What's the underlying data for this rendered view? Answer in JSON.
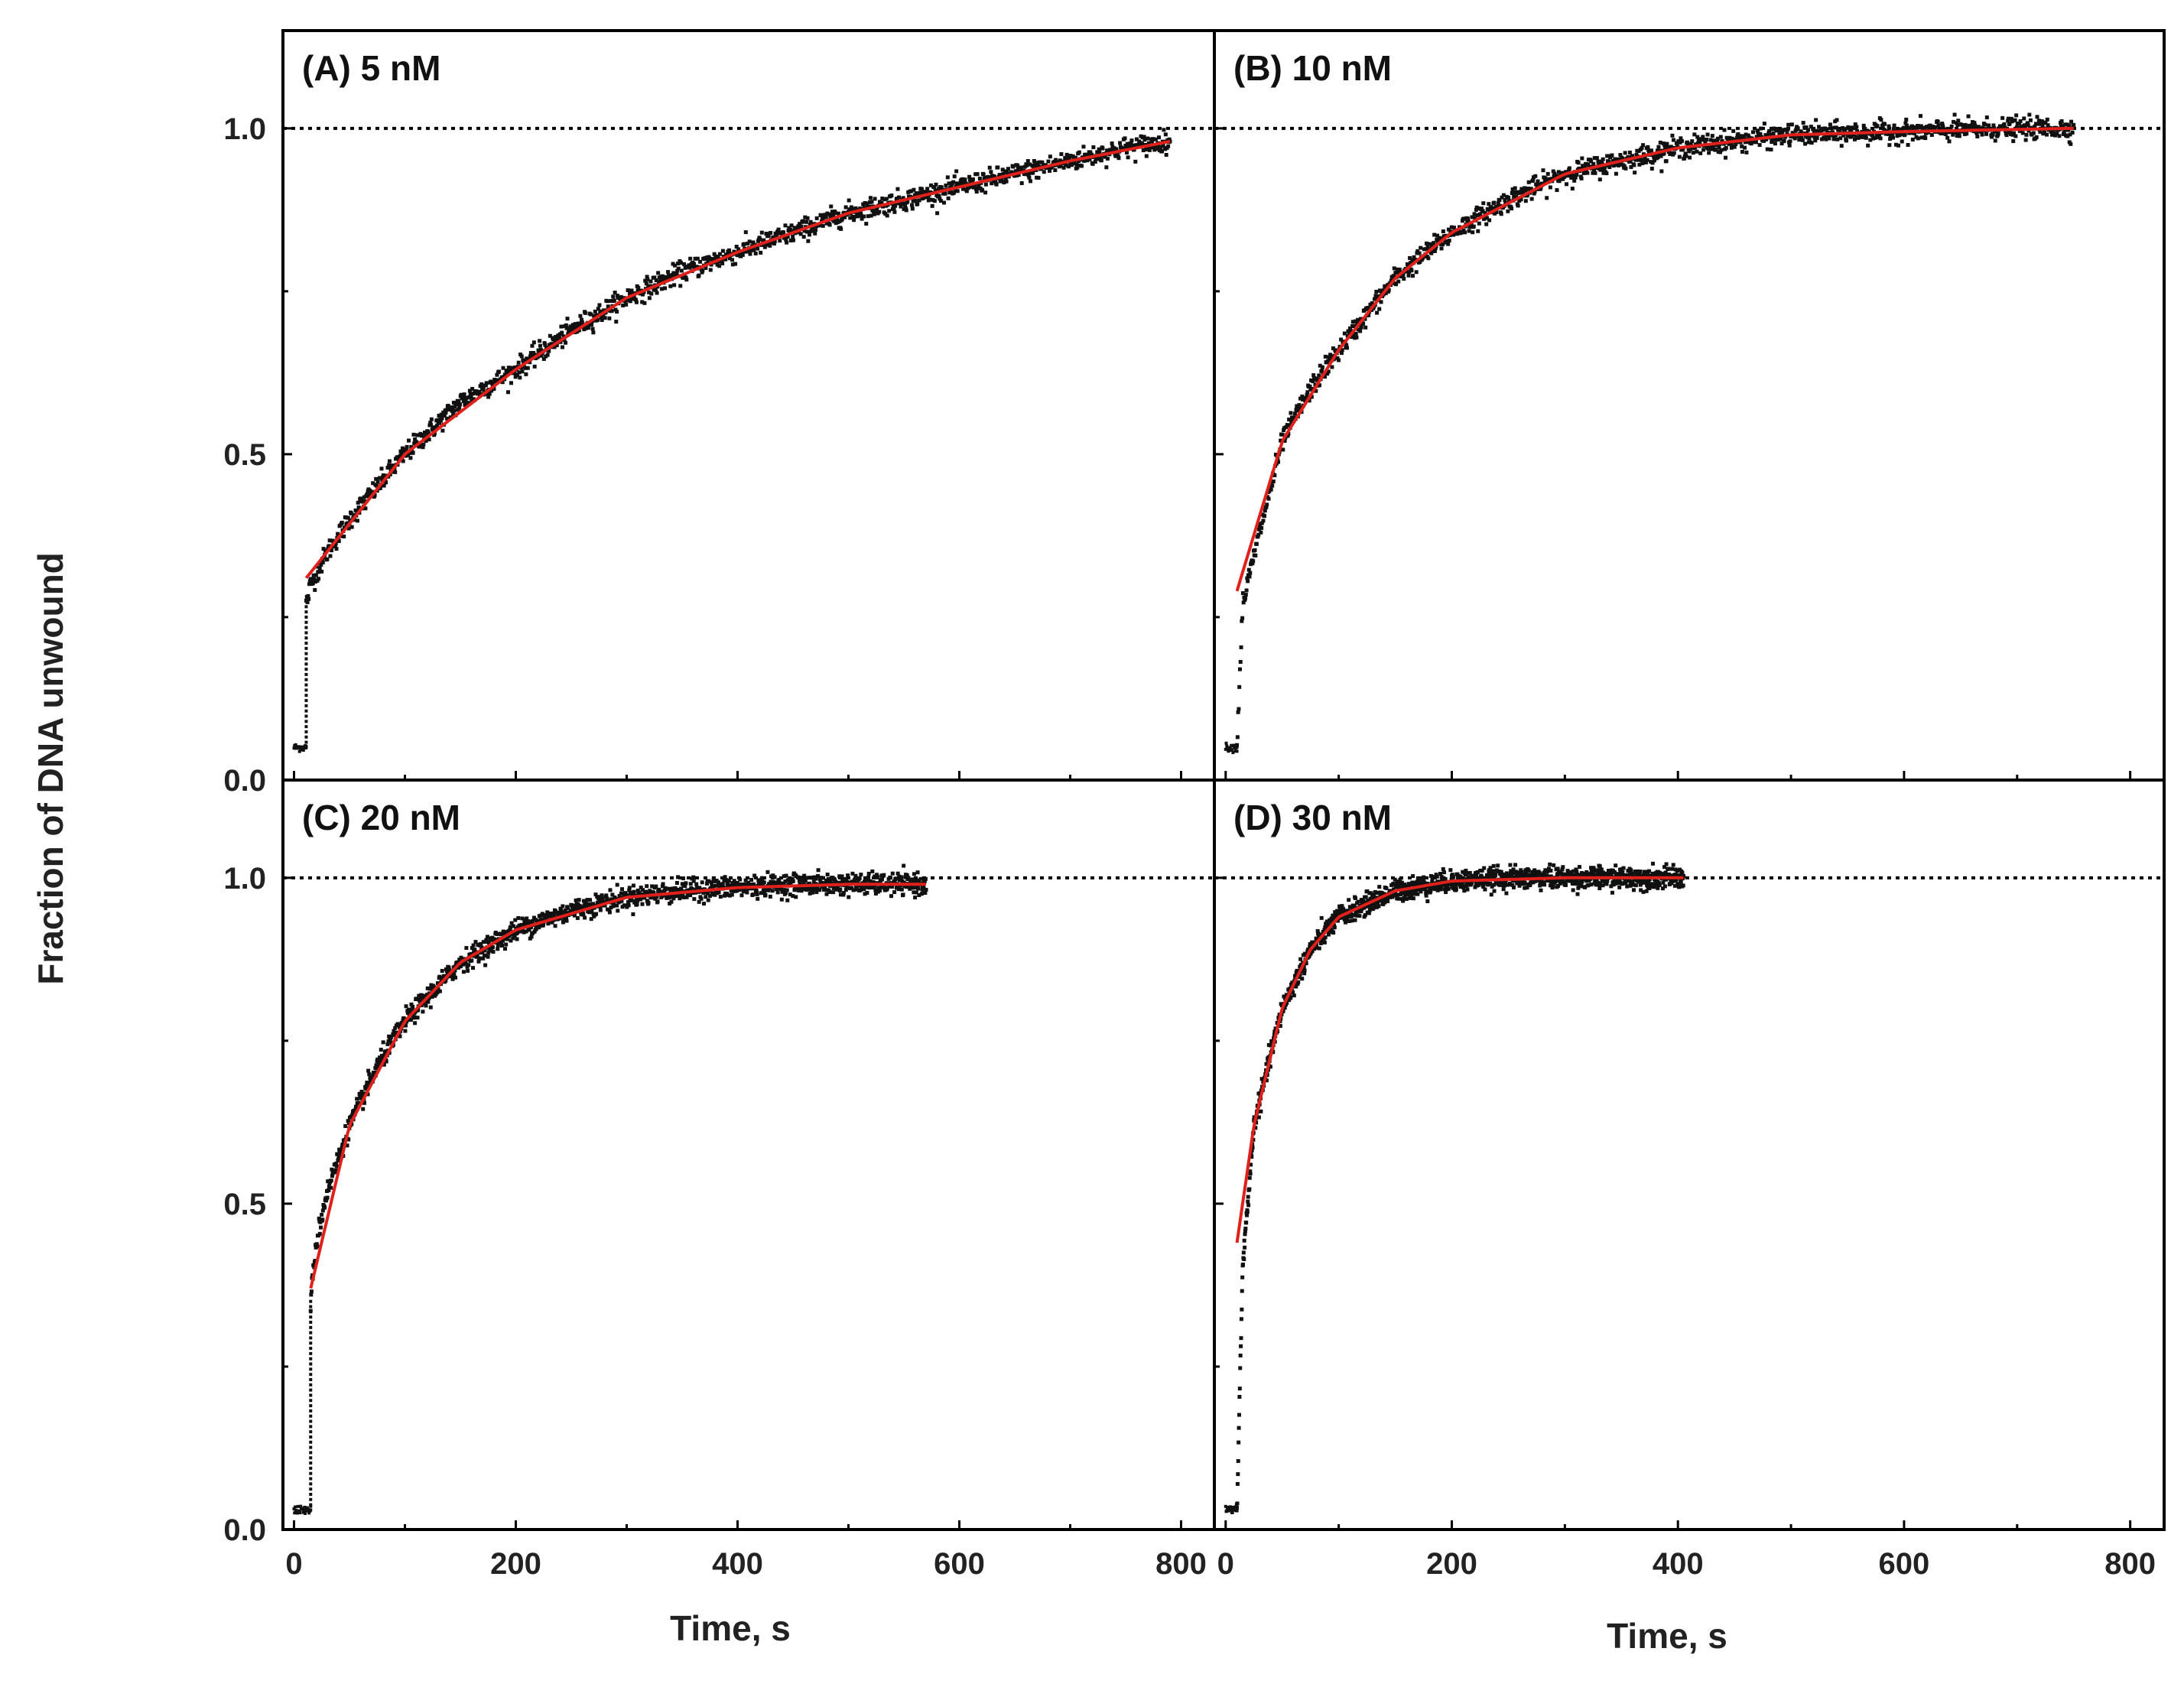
{
  "figure": {
    "ylabel": "Fraction of DNA unwound",
    "xlabel": "Time, s",
    "x_ticks": [
      "0",
      "200",
      "400",
      "600",
      "800"
    ],
    "y_ticks": [
      "0.0",
      "0.5",
      "1.0"
    ],
    "colors": {
      "data": "#111111",
      "fit": "#e0201b",
      "frame": "#000000",
      "reference": "#000000"
    }
  },
  "chart_data": [
    {
      "type": "scatter",
      "panel_label": "(A) 5 nM",
      "xlim": [
        -10,
        830
      ],
      "ylim": [
        0,
        1.15
      ],
      "reference_line_y": 1.0,
      "lag_s": 11,
      "baseline": 0.05,
      "fit": {
        "y0": 0.31,
        "amplitude": 0.69,
        "t_end": 790,
        "points": [
          [
            11,
            0.31
          ],
          [
            100,
            0.5
          ],
          [
            200,
            0.63
          ],
          [
            300,
            0.74
          ],
          [
            400,
            0.81
          ],
          [
            500,
            0.87
          ],
          [
            600,
            0.91
          ],
          [
            700,
            0.95
          ],
          [
            790,
            0.98
          ]
        ]
      },
      "series": [
        {
          "name": "",
          "x": [
            0,
            5,
            10,
            11,
            11,
            15,
            30,
            50,
            100,
            150,
            200,
            250,
            300,
            350,
            400,
            450,
            500,
            550,
            600,
            650,
            700,
            750,
            790
          ],
          "y": [
            0.05,
            0.05,
            0.05,
            0.05,
            0.27,
            0.3,
            0.35,
            0.4,
            0.5,
            0.58,
            0.63,
            0.69,
            0.74,
            0.78,
            0.81,
            0.84,
            0.87,
            0.89,
            0.91,
            0.93,
            0.95,
            0.97,
            0.98
          ]
        }
      ]
    },
    {
      "type": "scatter",
      "panel_label": "(B) 10 nM",
      "xlim": [
        -10,
        830
      ],
      "ylim": [
        0,
        1.15
      ],
      "reference_line_y": 1.0,
      "lag_s": 10,
      "baseline": 0.05,
      "fit": {
        "y0": 0.29,
        "amplitude": 0.71,
        "t_end": 750,
        "points": [
          [
            10,
            0.29
          ],
          [
            50,
            0.52
          ],
          [
            100,
            0.66
          ],
          [
            150,
            0.77
          ],
          [
            200,
            0.84
          ],
          [
            300,
            0.93
          ],
          [
            400,
            0.97
          ],
          [
            500,
            0.99
          ],
          [
            600,
            0.995
          ],
          [
            750,
            1.0
          ]
        ]
      },
      "series": [
        {
          "name": "",
          "x": [
            0,
            5,
            10,
            10,
            15,
            30,
            50,
            75,
            100,
            150,
            200,
            250,
            300,
            400,
            500,
            600,
            700,
            750
          ],
          "y": [
            0.05,
            0.05,
            0.05,
            0.05,
            0.27,
            0.38,
            0.52,
            0.6,
            0.66,
            0.77,
            0.84,
            0.89,
            0.93,
            0.97,
            0.99,
            0.995,
            1.0,
            1.0
          ]
        }
      ]
    },
    {
      "type": "scatter",
      "panel_label": "(C) 20 nM",
      "xlim": [
        -10,
        830
      ],
      "ylim": [
        0,
        1.15
      ],
      "reference_line_y": 1.0,
      "lag_s": 15,
      "baseline": 0.03,
      "fit": {
        "y0": 0.37,
        "amplitude": 0.62,
        "t_end": 570,
        "points": [
          [
            15,
            0.37
          ],
          [
            50,
            0.62
          ],
          [
            100,
            0.78
          ],
          [
            150,
            0.87
          ],
          [
            200,
            0.92
          ],
          [
            300,
            0.97
          ],
          [
            400,
            0.985
          ],
          [
            500,
            0.99
          ],
          [
            570,
            0.99
          ]
        ]
      },
      "series": [
        {
          "name": "",
          "x": [
            0,
            5,
            10,
            15,
            15,
            20,
            30,
            50,
            75,
            100,
            150,
            200,
            250,
            300,
            350,
            400,
            450,
            500,
            570
          ],
          "y": [
            0.03,
            0.03,
            0.03,
            0.03,
            0.35,
            0.44,
            0.52,
            0.62,
            0.71,
            0.78,
            0.87,
            0.92,
            0.95,
            0.97,
            0.98,
            0.985,
            0.99,
            0.99,
            0.99
          ]
        }
      ]
    },
    {
      "type": "scatter",
      "panel_label": "(D) 30 nM",
      "xlim": [
        -10,
        830
      ],
      "ylim": [
        0,
        1.15
      ],
      "reference_line_y": 1.0,
      "lag_s": 10,
      "baseline": 0.03,
      "fit": {
        "y0": 0.44,
        "amplitude": 0.56,
        "t_end": 405,
        "points": [
          [
            10,
            0.44
          ],
          [
            25,
            0.62
          ],
          [
            50,
            0.8
          ],
          [
            75,
            0.89
          ],
          [
            100,
            0.94
          ],
          [
            150,
            0.98
          ],
          [
            200,
            0.995
          ],
          [
            300,
            1.0
          ],
          [
            405,
            1.0
          ]
        ]
      },
      "series": [
        {
          "name": "",
          "x": [
            0,
            5,
            10,
            10,
            15,
            25,
            40,
            50,
            75,
            100,
            125,
            150,
            200,
            250,
            300,
            350,
            405
          ],
          "y": [
            0.03,
            0.03,
            0.03,
            0.03,
            0.4,
            0.62,
            0.73,
            0.8,
            0.89,
            0.94,
            0.96,
            0.98,
            0.995,
            1.0,
            1.0,
            1.0,
            1.0
          ]
        }
      ]
    }
  ]
}
